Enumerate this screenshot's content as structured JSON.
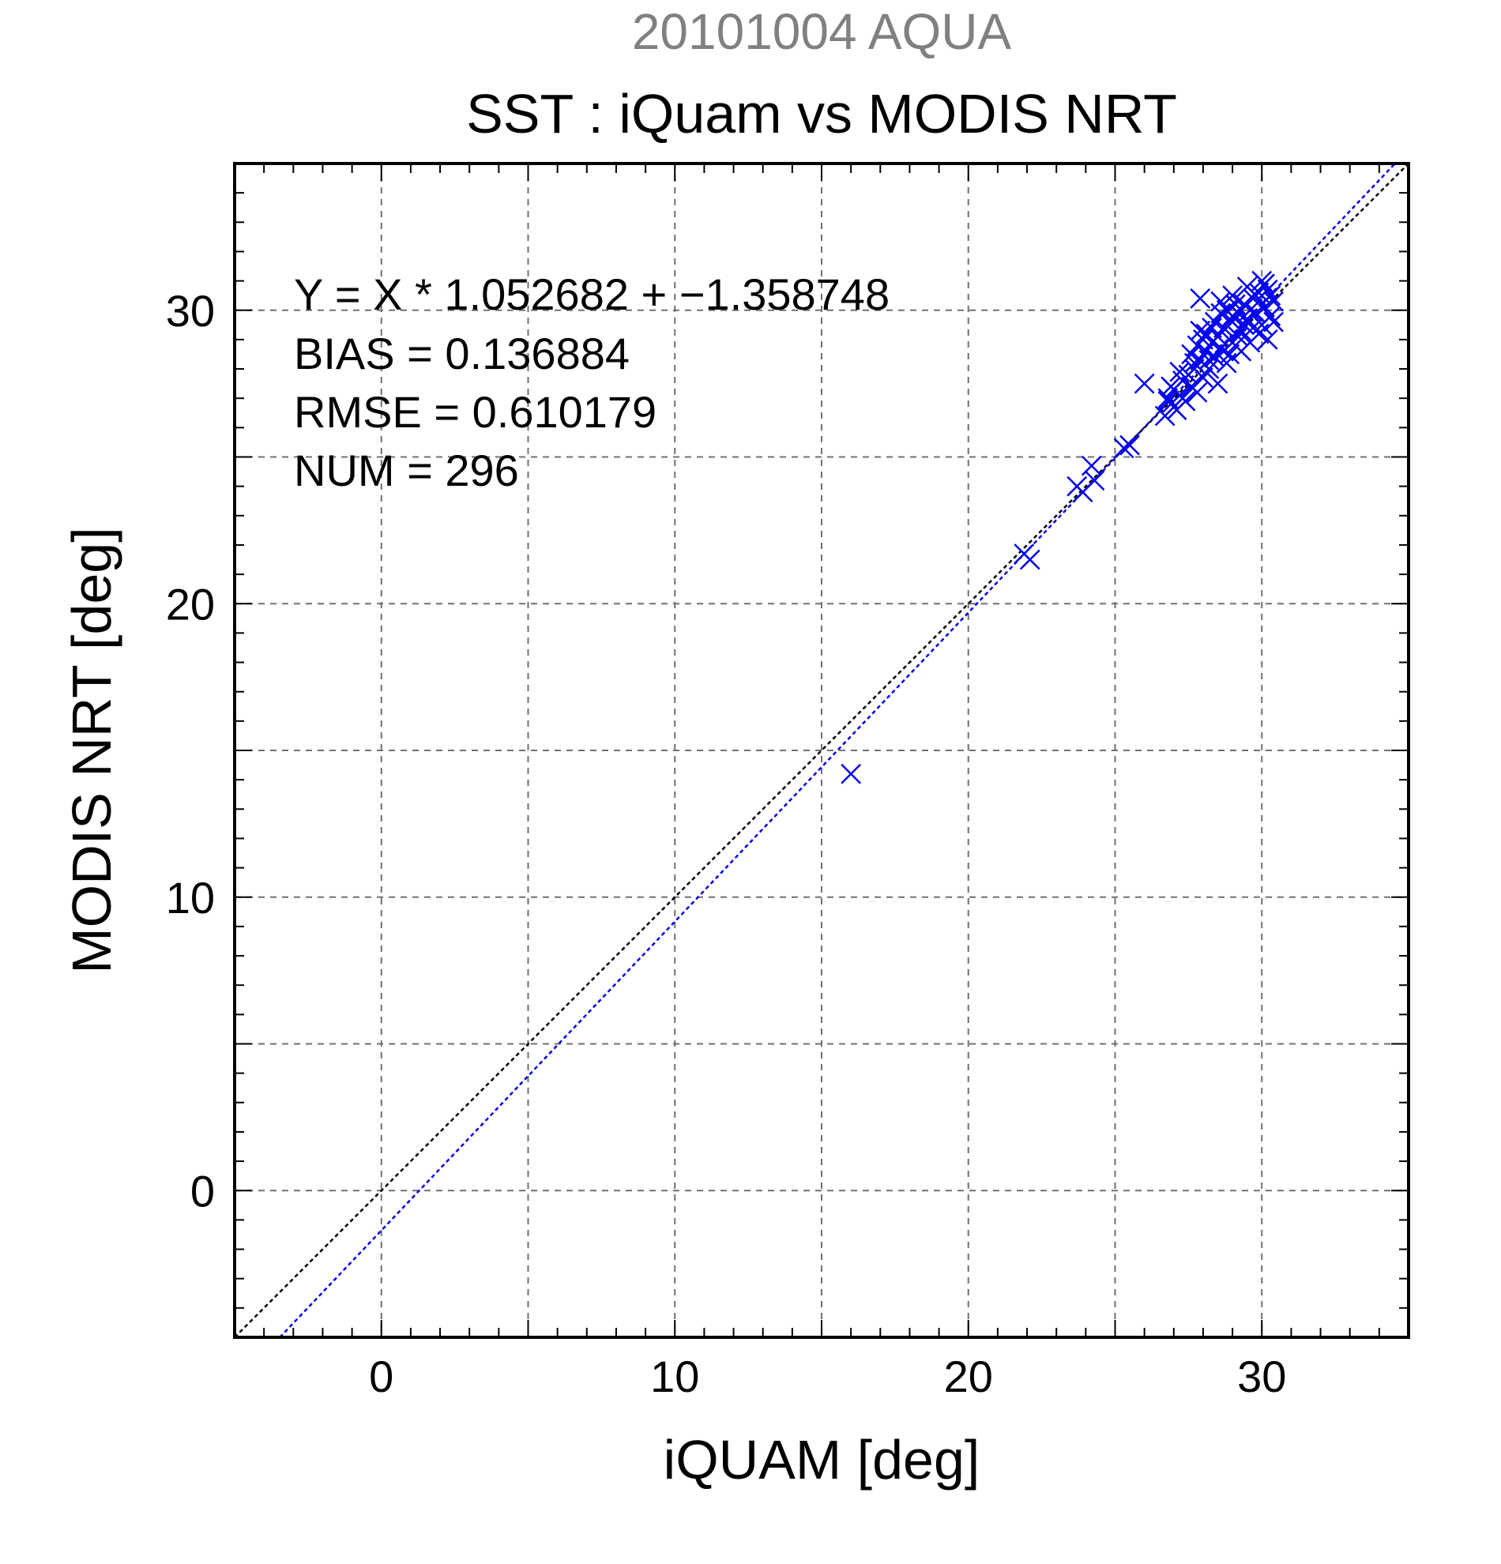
{
  "chart_data": {
    "type": "scatter",
    "supertitle": "20101004 AQUA",
    "title": "SST : iQuam vs MODIS NRT",
    "xlabel": "iQUAM [deg]",
    "ylabel": "MODIS NRT [deg]",
    "xlim": [
      -5,
      35
    ],
    "ylim": [
      -5,
      35
    ],
    "xticks": [
      0,
      10,
      20,
      30
    ],
    "yticks": [
      0,
      10,
      20,
      30
    ],
    "xtick_labels": [
      "0",
      "10",
      "20",
      "30"
    ],
    "ytick_labels": [
      "0",
      "10",
      "20",
      "30"
    ],
    "grid": true,
    "stats": {
      "equation": "Y = X * 1.052682 + −1.358748",
      "bias": "BIAS = 0.136884",
      "rmse": "RMSE = 0.610179",
      "num": "NUM = 296"
    },
    "fit_line": {
      "slope": 1.052682,
      "intercept": -1.358748,
      "color": "#0000ee"
    },
    "identity_line": {
      "slope": 1,
      "intercept": 0,
      "color": "#000000"
    },
    "marker_color": "#0000ee",
    "title_gray": "#808080",
    "points": [
      [
        16.0,
        14.2
      ],
      [
        21.9,
        21.7
      ],
      [
        22.1,
        21.5
      ],
      [
        23.7,
        24.0
      ],
      [
        23.9,
        23.8
      ],
      [
        24.2,
        24.7
      ],
      [
        24.3,
        24.2
      ],
      [
        25.3,
        25.3
      ],
      [
        25.5,
        25.4
      ],
      [
        26.0,
        27.5
      ],
      [
        26.7,
        26.4
      ],
      [
        26.8,
        27.0
      ],
      [
        26.9,
        26.8
      ],
      [
        27.0,
        27.3
      ],
      [
        27.1,
        26.6
      ],
      [
        26.8,
        26.9
      ],
      [
        27.2,
        27.1
      ],
      [
        27.3,
        27.6
      ],
      [
        27.4,
        26.9
      ],
      [
        27.5,
        27.8
      ],
      [
        27.6,
        27.4
      ],
      [
        27.7,
        28.0
      ],
      [
        27.8,
        27.2
      ],
      [
        27.9,
        30.4
      ],
      [
        27.9,
        28.3
      ],
      [
        28.0,
        27.7
      ],
      [
        28.1,
        28.6
      ],
      [
        28.2,
        28.0
      ],
      [
        28.3,
        28.9
      ],
      [
        28.4,
        28.4
      ],
      [
        28.5,
        27.5
      ],
      [
        28.5,
        29.1
      ],
      [
        28.6,
        28.7
      ],
      [
        28.7,
        29.4
      ],
      [
        28.8,
        28.2
      ],
      [
        28.9,
        29.0
      ],
      [
        29.0,
        30.5
      ],
      [
        29.0,
        29.6
      ],
      [
        29.1,
        28.8
      ],
      [
        29.2,
        29.9
      ],
      [
        29.3,
        29.3
      ],
      [
        29.4,
        30.2
      ],
      [
        29.5,
        29.7
      ],
      [
        29.6,
        28.9
      ],
      [
        29.7,
        30.4
      ],
      [
        29.8,
        29.9
      ],
      [
        29.9,
        30.6
      ],
      [
        30.0,
        29.5
      ],
      [
        30.1,
        30.1
      ],
      [
        30.2,
        30.7
      ],
      [
        30.3,
        29.8
      ],
      [
        30.4,
        30.3
      ],
      [
        30.2,
        29.0
      ],
      [
        30.1,
        30.9
      ],
      [
        29.9,
        29.2
      ],
      [
        29.6,
        30.0
      ],
      [
        29.3,
        28.6
      ],
      [
        28.9,
        28.5
      ],
      [
        28.6,
        29.9
      ],
      [
        28.3,
        29.4
      ],
      [
        27.9,
        29.3
      ],
      [
        27.6,
        28.5
      ],
      [
        27.3,
        27.0
      ],
      [
        27.0,
        26.7
      ],
      [
        26.9,
        27.4
      ],
      [
        28.8,
        30.0
      ],
      [
        29.5,
        30.8
      ],
      [
        30.0,
        31.0
      ],
      [
        30.3,
        30.5
      ],
      [
        29.7,
        29.4
      ],
      [
        29.2,
        29.1
      ],
      [
        28.7,
        28.6
      ],
      [
        28.4,
        29.6
      ],
      [
        28.1,
        29.2
      ],
      [
        27.8,
        28.8
      ],
      [
        28.0,
        29.0
      ],
      [
        28.6,
        30.3
      ],
      [
        29.1,
        30.2
      ],
      [
        29.8,
        30.5
      ],
      [
        30.4,
        29.6
      ],
      [
        29.4,
        29.5
      ],
      [
        29.0,
        29.8
      ],
      [
        28.2,
        28.3
      ],
      [
        27.7,
        28.2
      ],
      [
        27.2,
        27.9
      ]
    ]
  }
}
